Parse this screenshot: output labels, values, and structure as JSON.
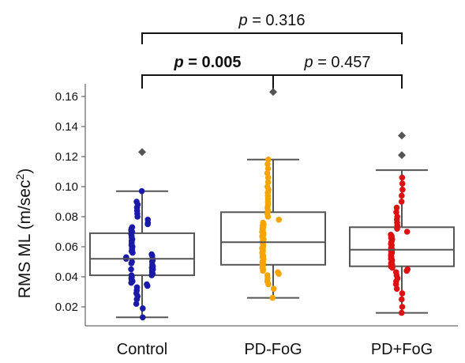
{
  "chart_data": {
    "type": "box",
    "title": "",
    "xlabel": "",
    "ylabel_main": "RMS ML (m/sec",
    "ylabel_sup": "2",
    "ylabel_close": ")",
    "ylim": [
      0.005,
      0.175
    ],
    "yticks": [
      0.02,
      0.04,
      0.06,
      0.08,
      0.1,
      0.12,
      0.14,
      0.16
    ],
    "ytick_labels": [
      "0.02",
      "0.04",
      "0.06",
      "0.08",
      "0.10",
      "0.12",
      "0.14",
      "0.16"
    ],
    "categories": [
      "Control",
      "PD-FoG",
      "PD+FoG"
    ],
    "colors": {
      "Control": "#1a1aa8",
      "PD-FoG": "#f5a400",
      "PD+FoG": "#dd1111",
      "box": "#555555",
      "outlier": "#555555"
    },
    "groups": [
      {
        "name": "Control",
        "whisker_low": 0.013,
        "q1": 0.041,
        "median": 0.052,
        "q3": 0.069,
        "whisker_high": 0.097,
        "outliers": [
          0.123
        ],
        "points": [
          0.013,
          0.019,
          0.022,
          0.025,
          0.027,
          0.029,
          0.031,
          0.033,
          0.034,
          0.035,
          0.036,
          0.037,
          0.038,
          0.039,
          0.04,
          0.041,
          0.041,
          0.042,
          0.043,
          0.044,
          0.045,
          0.045,
          0.046,
          0.047,
          0.048,
          0.049,
          0.05,
          0.05,
          0.051,
          0.052,
          0.052,
          0.053,
          0.054,
          0.055,
          0.056,
          0.057,
          0.058,
          0.059,
          0.06,
          0.061,
          0.062,
          0.063,
          0.064,
          0.065,
          0.066,
          0.067,
          0.068,
          0.069,
          0.07,
          0.071,
          0.072,
          0.073,
          0.075,
          0.076,
          0.078,
          0.08,
          0.082,
          0.084,
          0.086,
          0.088,
          0.09,
          0.097
        ]
      },
      {
        "name": "PD-FoG",
        "whisker_low": 0.026,
        "q1": 0.048,
        "median": 0.063,
        "q3": 0.083,
        "whisker_high": 0.118,
        "outliers": [
          0.163
        ],
        "points": [
          0.026,
          0.032,
          0.035,
          0.037,
          0.039,
          0.041,
          0.042,
          0.043,
          0.044,
          0.045,
          0.046,
          0.047,
          0.048,
          0.049,
          0.05,
          0.051,
          0.052,
          0.053,
          0.054,
          0.055,
          0.056,
          0.057,
          0.058,
          0.059,
          0.06,
          0.061,
          0.062,
          0.063,
          0.064,
          0.065,
          0.066,
          0.067,
          0.068,
          0.069,
          0.07,
          0.071,
          0.072,
          0.073,
          0.074,
          0.075,
          0.076,
          0.078,
          0.08,
          0.082,
          0.084,
          0.086,
          0.088,
          0.09,
          0.092,
          0.094,
          0.096,
          0.098,
          0.1,
          0.103,
          0.106,
          0.109,
          0.112,
          0.115,
          0.118
        ]
      },
      {
        "name": "PD+FoG",
        "whisker_low": 0.016,
        "q1": 0.047,
        "median": 0.058,
        "q3": 0.073,
        "whisker_high": 0.111,
        "outliers": [
          0.121,
          0.134
        ],
        "points": [
          0.016,
          0.02,
          0.025,
          0.029,
          0.032,
          0.035,
          0.037,
          0.039,
          0.041,
          0.043,
          0.044,
          0.045,
          0.046,
          0.047,
          0.048,
          0.049,
          0.05,
          0.051,
          0.052,
          0.053,
          0.054,
          0.055,
          0.056,
          0.057,
          0.058,
          0.059,
          0.06,
          0.061,
          0.062,
          0.063,
          0.064,
          0.065,
          0.066,
          0.067,
          0.068,
          0.07,
          0.072,
          0.074,
          0.076,
          0.078,
          0.08,
          0.083,
          0.086,
          0.09,
          0.094,
          0.098,
          0.102,
          0.106
        ]
      }
    ],
    "significance": [
      {
        "from": "Control",
        "to": "PD+FoG",
        "p_prefix": "p",
        "p_rest": " = 0.316",
        "bold": false,
        "level": 2
      },
      {
        "from": "Control",
        "to": "PD-FoG",
        "p_prefix": "p",
        "p_rest": " = 0.005",
        "bold": true,
        "level": 1
      },
      {
        "from": "PD-FoG",
        "to": "PD+FoG",
        "p_prefix": "p",
        "p_rest": " = 0.457",
        "bold": false,
        "level": 1
      }
    ]
  }
}
